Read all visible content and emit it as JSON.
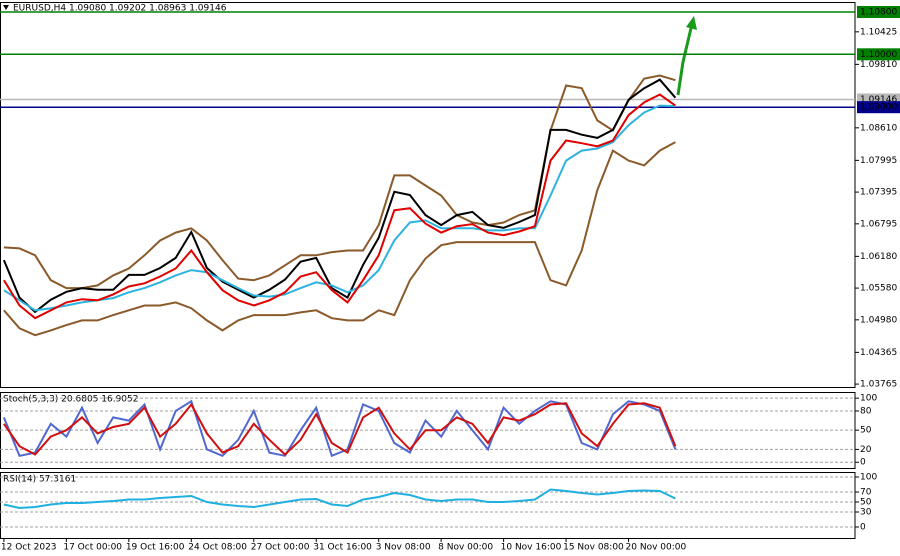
{
  "chart_data": [
    {
      "type": "line",
      "title": "EURUSD,H4  1.09080 1.09202 1.08963 1.09146",
      "x": [
        0,
        4,
        8,
        12,
        16,
        20,
        24,
        28,
        32,
        36,
        40,
        44,
        48,
        52,
        56,
        60,
        64,
        68,
        72,
        76,
        80,
        84,
        88,
        92,
        96,
        100,
        104,
        108,
        112,
        116,
        120,
        124,
        128,
        132,
        136,
        140,
        144,
        148,
        152,
        156,
        160,
        164,
        168,
        172
      ],
      "xlim": [
        -1,
        218
      ],
      "ylim": [
        1.0371,
        1.1097
      ],
      "yticks": [
        {
          "value": 1.10425,
          "label": "1.10425"
        },
        {
          "value": 1.0981,
          "label": "1.09810"
        },
        {
          "value": 1.0861,
          "label": "1.08610"
        },
        {
          "value": 1.07995,
          "label": "1.07995"
        },
        {
          "value": 1.07395,
          "label": "1.07395"
        },
        {
          "value": 1.06795,
          "label": "1.06795"
        },
        {
          "value": 1.0618,
          "label": "1.06180"
        },
        {
          "value": 1.0558,
          "label": "1.05580"
        },
        {
          "value": 1.0498,
          "label": "1.04980"
        },
        {
          "value": 1.04365,
          "label": "1.04365"
        },
        {
          "value": 1.03765,
          "label": "1.03765"
        }
      ],
      "levels": [
        {
          "value": 1.108,
          "label": "1.10800",
          "color": "#008000"
        },
        {
          "value": 1.1,
          "label": "1.10000",
          "color": "#008000"
        },
        {
          "value": 1.09146,
          "label": "1.09146",
          "color": "#b8b8b8"
        },
        {
          "value": 1.09,
          "label": "1.09000",
          "color": "#00008b"
        }
      ],
      "series": [
        {
          "color": "#8b5a2b",
          "values": [
            1.0635,
            1.0633,
            1.062,
            1.0573,
            1.0558,
            1.0558,
            1.0563,
            1.0582,
            1.0595,
            1.062,
            1.0648,
            1.0663,
            1.0671,
            1.0648,
            1.0611,
            1.0576,
            1.0573,
            1.0582,
            1.0601,
            1.062,
            1.062,
            1.0626,
            1.0629,
            1.0629,
            1.0677,
            1.0771,
            1.0771,
            1.0752,
            1.0733,
            1.0696,
            1.0682,
            1.0677,
            1.0682,
            1.0696,
            1.0705,
            1.0856,
            1.0941,
            1.0936,
            1.0875,
            1.0856,
            1.0913,
            1.0954,
            1.096,
            1.0951
          ]
        },
        {
          "color": "#8b5a2b",
          "values": [
            1.0516,
            1.0482,
            1.0469,
            1.0478,
            1.0488,
            1.0497,
            1.0497,
            1.0507,
            1.0516,
            1.0525,
            1.0525,
            1.0531,
            1.052,
            1.0497,
            1.0478,
            1.0497,
            1.0507,
            1.0507,
            1.0507,
            1.0512,
            1.0516,
            1.0501,
            1.0497,
            1.0497,
            1.0516,
            1.0507,
            1.0573,
            1.0614,
            1.0639,
            1.0645,
            1.0645,
            1.0645,
            1.0645,
            1.0645,
            1.0645,
            1.0573,
            1.0563,
            1.0629,
            1.0743,
            1.0818,
            1.0799,
            1.079,
            1.0818,
            1.0834
          ]
        },
        {
          "color": "#000000",
          "values": [
            1.0611,
            1.054,
            1.0513,
            1.0536,
            1.0551,
            1.0558,
            1.0555,
            1.0555,
            1.0583,
            1.0583,
            1.0596,
            1.0615,
            1.0664,
            1.0596,
            1.057,
            1.0555,
            1.054,
            1.0555,
            1.0574,
            1.0608,
            1.0615,
            1.0558,
            1.054,
            1.0602,
            1.0653,
            1.074,
            1.0734,
            1.0696,
            1.0677,
            1.0696,
            1.0702,
            1.0677,
            1.0672,
            1.0683,
            1.0696,
            1.0857,
            1.0857,
            1.0848,
            1.0842,
            1.0857,
            1.0914,
            1.0936,
            1.0952,
            1.0918
          ]
        },
        {
          "color": "#2eb3e0",
          "values": [
            1.0554,
            1.0535,
            1.0516,
            1.052,
            1.0525,
            1.0531,
            1.0535,
            1.0539,
            1.055,
            1.0558,
            1.0569,
            1.0582,
            1.0592,
            1.0588,
            1.0573,
            1.0558,
            1.0544,
            1.0542,
            1.0546,
            1.0558,
            1.0569,
            1.0563,
            1.055,
            1.0563,
            1.0592,
            1.0648,
            1.0682,
            1.0686,
            1.0671,
            1.0671,
            1.0671,
            1.0667,
            1.0667,
            1.0671,
            1.0671,
            1.0733,
            1.0799,
            1.0818,
            1.0822,
            1.0834,
            1.0866,
            1.089,
            1.0903,
            1.0902
          ]
        },
        {
          "color": "#e00000",
          "values": [
            1.0573,
            1.0525,
            1.0501,
            1.0516,
            1.0531,
            1.0537,
            1.0535,
            1.0546,
            1.0561,
            1.0567,
            1.058,
            1.0595,
            1.0629,
            1.0588,
            1.0554,
            1.0535,
            1.0525,
            1.0535,
            1.055,
            1.058,
            1.0588,
            1.0554,
            1.0531,
            1.0573,
            1.062,
            1.0705,
            1.0709,
            1.068,
            1.0663,
            1.0675,
            1.0679,
            1.0663,
            1.0658,
            1.0665,
            1.0675,
            1.0799,
            1.0837,
            1.0832,
            1.0826,
            1.0837,
            1.0885,
            1.0909,
            1.0924,
            1.0903
          ]
        }
      ]
    },
    {
      "type": "line",
      "title": "Stoch(5,3,3) 20.6805 16.9052",
      "x": [
        0,
        4,
        8,
        12,
        16,
        20,
        24,
        28,
        32,
        36,
        40,
        44,
        48,
        52,
        56,
        60,
        64,
        68,
        72,
        76,
        80,
        84,
        88,
        92,
        96,
        100,
        104,
        108,
        112,
        116,
        120,
        124,
        128,
        132,
        136,
        140,
        144,
        148,
        152,
        156,
        160,
        164,
        168,
        172
      ],
      "xlim": [
        -1,
        218
      ],
      "ylim": [
        -9,
        108
      ],
      "yticks": [
        100,
        80,
        50,
        20,
        0
      ],
      "grid": true,
      "series": [
        {
          "color": "#5068d0",
          "values": [
            70,
            10,
            15,
            60,
            40,
            85,
            30,
            70,
            65,
            90,
            20,
            80,
            95,
            20,
            10,
            35,
            80,
            15,
            10,
            50,
            85,
            10,
            20,
            90,
            80,
            30,
            15,
            65,
            40,
            80,
            50,
            20,
            85,
            60,
            80,
            95,
            90,
            30,
            20,
            75,
            95,
            90,
            80,
            20
          ]
        },
        {
          "color": "#d01010",
          "values": [
            60,
            25,
            12,
            40,
            50,
            70,
            45,
            55,
            60,
            85,
            40,
            60,
            90,
            45,
            15,
            25,
            60,
            35,
            12,
            35,
            75,
            30,
            15,
            70,
            85,
            45,
            20,
            50,
            50,
            70,
            60,
            30,
            70,
            65,
            75,
            90,
            92,
            45,
            25,
            60,
            90,
            92,
            85,
            25
          ]
        }
      ]
    },
    {
      "type": "line",
      "title": "RSI(14) 57.3161",
      "x": [
        0,
        4,
        8,
        12,
        16,
        20,
        24,
        28,
        32,
        36,
        40,
        44,
        48,
        52,
        56,
        60,
        64,
        68,
        72,
        76,
        80,
        84,
        88,
        92,
        96,
        100,
        104,
        108,
        112,
        116,
        120,
        124,
        128,
        132,
        136,
        140,
        144,
        148,
        152,
        156,
        160,
        164,
        168,
        172
      ],
      "xlim": [
        -1,
        218
      ],
      "ylim": [
        -22,
        108
      ],
      "yticks": [
        100,
        70,
        50,
        30,
        0
      ],
      "grid": true,
      "xticks": [
        {
          "value": 0,
          "label": "12 Oct 2023"
        },
        {
          "value": 16,
          "label": "17 Oct 00:00"
        },
        {
          "value": 32,
          "label": "19 Oct 16:00"
        },
        {
          "value": 48,
          "label": "24 Oct 08:00"
        },
        {
          "value": 64,
          "label": "27 Oct 00:00"
        },
        {
          "value": 80,
          "label": "31 Oct 16:00"
        },
        {
          "value": 96,
          "label": "3 Nov 08:00"
        },
        {
          "value": 112,
          "label": "8 Nov 00:00"
        },
        {
          "value": 128,
          "label": "10 Nov 16:00"
        },
        {
          "value": 144,
          "label": "15 Nov 08:00"
        },
        {
          "value": 160,
          "label": "20 Nov 00:00"
        }
      ],
      "series": [
        {
          "color": "#20b0e0",
          "values": [
            45,
            38,
            40,
            45,
            48,
            48,
            50,
            52,
            55,
            55,
            58,
            60,
            62,
            50,
            45,
            42,
            40,
            45,
            50,
            55,
            56,
            45,
            42,
            55,
            60,
            68,
            64,
            55,
            52,
            55,
            55,
            50,
            50,
            52,
            55,
            75,
            72,
            68,
            65,
            68,
            72,
            73,
            72,
            57
          ]
        }
      ]
    }
  ]
}
